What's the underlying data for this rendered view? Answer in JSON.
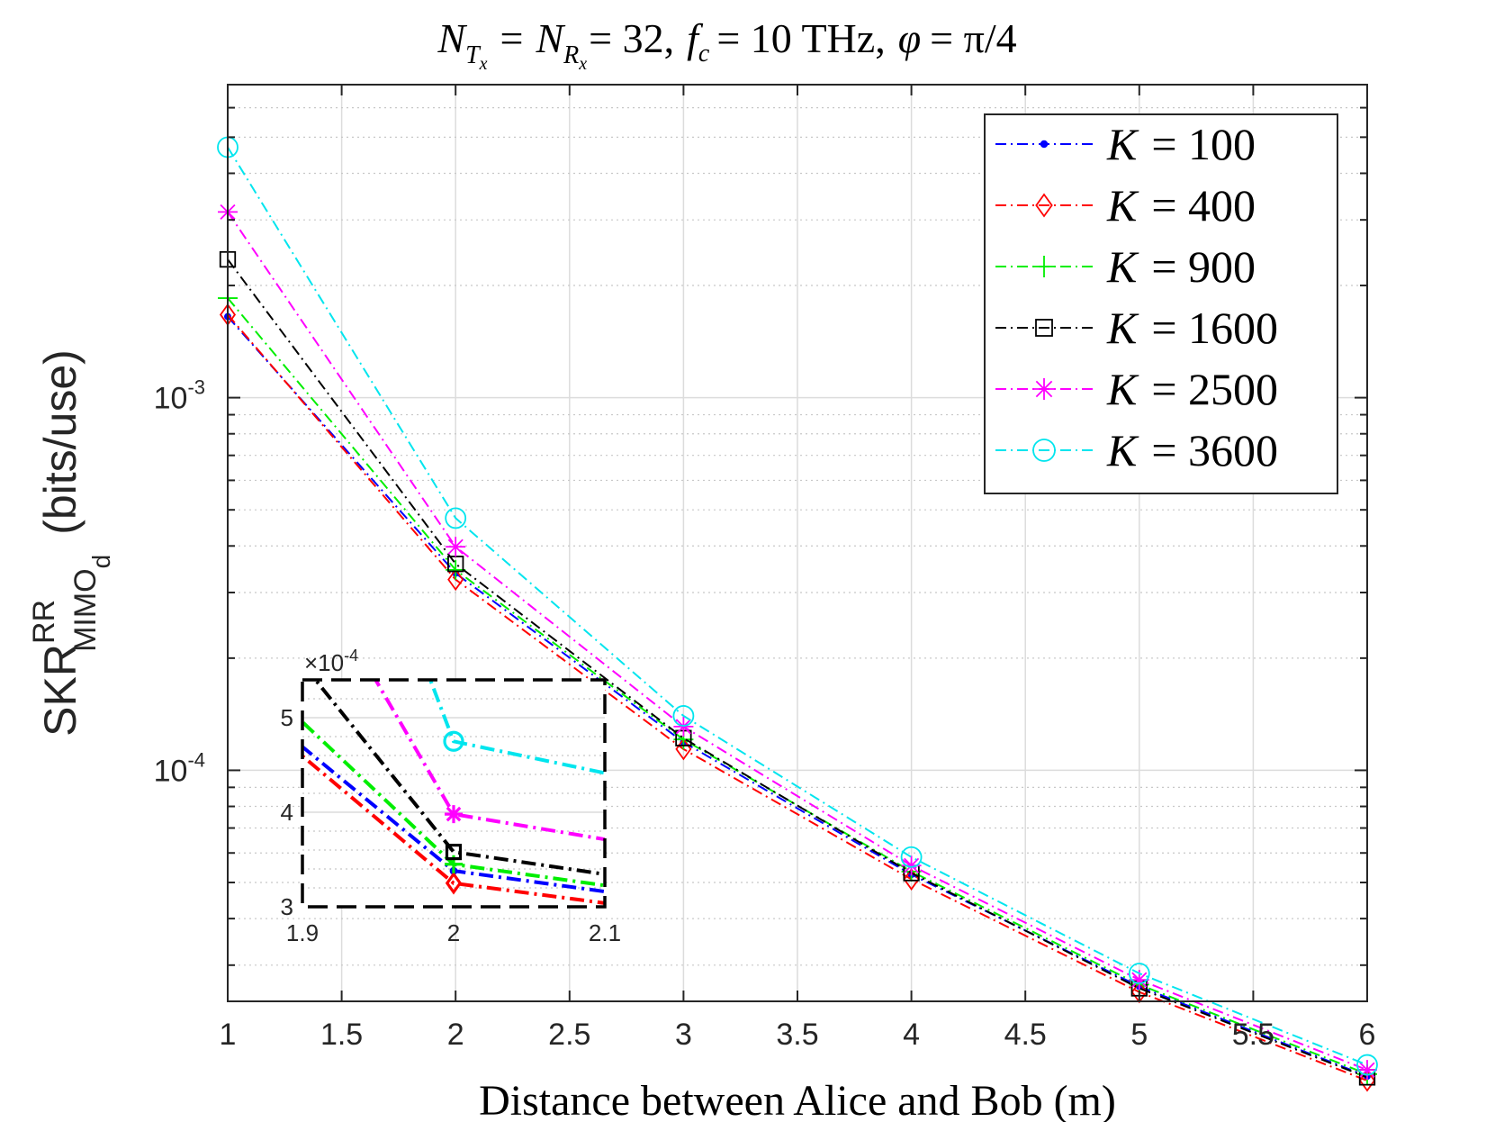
{
  "chart_data": {
    "type": "line",
    "title_parts": {
      "lhs_a": "N",
      "sub_a1": "T",
      "sub_a2": "x",
      "eq1": "=",
      "lhs_b": "N",
      "sub_b1": "R",
      "sub_b2": "x",
      "eq2": "= 32,",
      "fc": "f",
      "fc_sub": "c",
      "fc_val": "= 10 THz,",
      "phi": "φ",
      "phi_val": "= π/4"
    },
    "xlabel": "Distance between Alice and Bob (m)",
    "ylabel": {
      "base": "SKR",
      "sup": "RR",
      "sub": "MIMO",
      "subsub": "d",
      "units": "(bits/use)"
    },
    "xlim": [
      1,
      6
    ],
    "ylim_log10": [
      -4.62,
      -2.16
    ],
    "xticks": [
      "1",
      "1.5",
      "2",
      "2.5",
      "3",
      "3.5",
      "4",
      "4.5",
      "5",
      "5.5",
      "6"
    ],
    "yticks": [
      {
        "base": "10",
        "exp": "-4",
        "value": 0.0001
      },
      {
        "base": "10",
        "exp": "-3",
        "value": 0.001
      }
    ],
    "grid": true,
    "x": [
      1,
      2,
      3,
      4,
      5,
      6
    ],
    "series": [
      {
        "name": "K = 100",
        "k_label": "K",
        "eq_label": "= 100",
        "color": "#0000ff",
        "marker": "dot",
        "values": [
          0.00165,
          0.000338,
          0.000119,
          5.25e-05,
          2.63e-05,
          1.51e-05
        ]
      },
      {
        "name": "K = 400",
        "k_label": "K",
        "eq_label": "= 400",
        "color": "#ff0000",
        "marker": "diamond",
        "values": [
          0.00167,
          0.000325,
          0.000114,
          5.1e-05,
          2.54e-05,
          1.47e-05
        ]
      },
      {
        "name": "K = 900",
        "k_label": "K",
        "eq_label": "= 900",
        "color": "#00ee00",
        "marker": "plus",
        "values": [
          0.00185,
          0.000345,
          0.000121,
          5.35e-05,
          2.66e-05,
          1.53e-05
        ]
      },
      {
        "name": "K = 1600",
        "k_label": "K",
        "eq_label": "= 1600",
        "color": "#000000",
        "marker": "square",
        "values": [
          0.00235,
          0.000358,
          0.000122,
          5.3e-05,
          2.6e-05,
          1.5e-05
        ]
      },
      {
        "name": "K = 2500",
        "k_label": "K",
        "eq_label": "= 2500",
        "color": "#ff00ff",
        "marker": "star",
        "values": [
          0.00315,
          0.000398,
          0.000131,
          5.55e-05,
          2.74e-05,
          1.57e-05
        ]
      },
      {
        "name": "K = 3600",
        "k_label": "K",
        "eq_label": "= 3600",
        "color": "#00e5ee",
        "marker": "circle",
        "values": [
          0.0047,
          0.000475,
          0.00014,
          5.85e-05,
          2.85e-05,
          1.62e-05
        ]
      }
    ],
    "legend_position": "top-right",
    "inset": {
      "xlim": [
        1.9,
        2.1
      ],
      "ylim": [
        3,
        5.4
      ],
      "xticks": [
        "1.9",
        "2",
        "2.1"
      ],
      "yticks": [
        "3",
        "4",
        "5"
      ],
      "scale_prefix": "×10",
      "scale_exp": "-4"
    }
  }
}
